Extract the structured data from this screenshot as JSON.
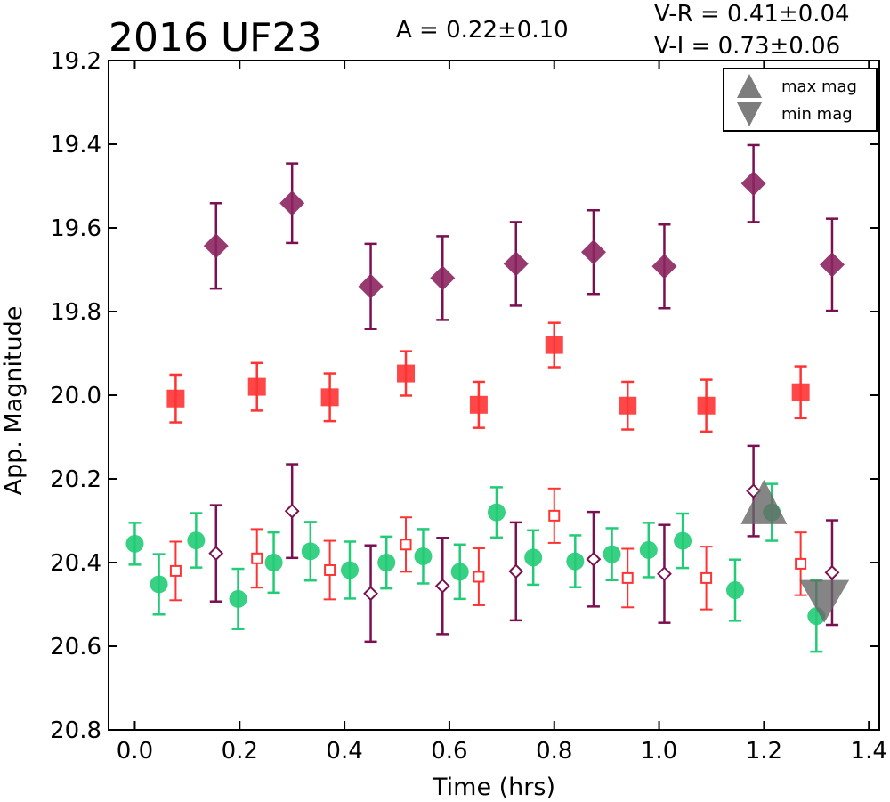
{
  "header": {
    "title": "2016 UF23",
    "amplitude": "A  = 0.22±0.10",
    "color_vr": "V-R = 0.41±0.04",
    "color_vi": "V-I  = 0.73±0.06"
  },
  "legend": {
    "max_label": "max mag",
    "min_label": "min mag"
  },
  "chart_data": {
    "type": "scatter",
    "xlabel": "Time (hrs)",
    "ylabel": "App. Magnitude",
    "xlim": [
      -0.05,
      1.42
    ],
    "ylim": [
      20.8,
      19.2
    ],
    "y_inverted": true,
    "grid": false,
    "legend_position": "top-right",
    "xticks": [
      "0.0",
      "0.2",
      "0.4",
      "0.6",
      "0.8",
      "1.0",
      "1.2",
      "1.4"
    ],
    "xtick_values": [
      0.0,
      0.2,
      0.4,
      0.6,
      0.8,
      1.0,
      1.2,
      1.4
    ],
    "yticks": [
      "19.2",
      "19.4",
      "19.6",
      "19.8",
      "20.0",
      "20.2",
      "20.4",
      "20.6",
      "20.8"
    ],
    "ytick_values": [
      19.2,
      19.4,
      19.6,
      19.8,
      20.0,
      20.2,
      20.4,
      20.6,
      20.8
    ],
    "colors": {
      "green": "#22cc77",
      "red": "#ff3333",
      "purple": "#7a1050",
      "purple_fill": "#8b2560",
      "marker_gray": "#666666"
    },
    "series": [
      {
        "marker": "filled-circle",
        "color": "#22cc77",
        "x": [
          0.0,
          0.046,
          0.117,
          0.197,
          0.265,
          0.335,
          0.41,
          0.48,
          0.55,
          0.62,
          0.69,
          0.76,
          0.84,
          0.91,
          0.98,
          1.045,
          1.145,
          1.215,
          1.3
        ],
        "y": [
          20.355,
          20.452,
          20.347,
          20.487,
          20.4,
          20.373,
          20.418,
          20.4,
          20.385,
          20.422,
          20.28,
          20.388,
          20.397,
          20.38,
          20.37,
          20.348,
          20.466,
          20.28,
          20.528
        ],
        "err": [
          0.05,
          0.072,
          0.065,
          0.072,
          0.072,
          0.07,
          0.068,
          0.062,
          0.065,
          0.065,
          0.06,
          0.065,
          0.062,
          0.062,
          0.065,
          0.065,
          0.073,
          0.068,
          0.085
        ]
      },
      {
        "marker": "filled-square",
        "color": "#ff3333",
        "x": [
          0.078,
          0.233,
          0.372,
          0.517,
          0.656,
          0.8,
          0.94,
          1.09,
          1.27
        ],
        "y": [
          20.008,
          19.98,
          20.005,
          19.948,
          20.023,
          19.88,
          20.025,
          20.025,
          19.993
        ],
        "err": [
          0.057,
          0.057,
          0.057,
          0.053,
          0.055,
          0.053,
          0.057,
          0.062,
          0.062
        ]
      },
      {
        "marker": "filled-diamond",
        "color": "#8b2560",
        "x": [
          0.155,
          0.3,
          0.45,
          0.587,
          0.727,
          0.875,
          1.01,
          1.18,
          1.33
        ],
        "y": [
          19.643,
          19.541,
          19.74,
          19.72,
          19.686,
          19.658,
          19.692,
          19.494,
          19.688
        ],
        "err": [
          0.102,
          0.095,
          0.102,
          0.1,
          0.1,
          0.1,
          0.1,
          0.092,
          0.11
        ]
      },
      {
        "marker": "open-square",
        "color": "#ff3333",
        "x": [
          0.078,
          0.233,
          0.372,
          0.517,
          0.656,
          0.8,
          0.94,
          1.09,
          1.27
        ],
        "y": [
          20.42,
          20.39,
          20.418,
          20.357,
          20.434,
          20.288,
          20.437,
          20.437,
          20.403
        ],
        "err": [
          0.07,
          0.07,
          0.07,
          0.065,
          0.068,
          0.065,
          0.07,
          0.075,
          0.075
        ]
      },
      {
        "marker": "open-diamond",
        "color": "#7a1050",
        "x": [
          0.155,
          0.3,
          0.45,
          0.587,
          0.727,
          0.875,
          1.01,
          1.18,
          1.33
        ],
        "y": [
          20.378,
          20.277,
          20.474,
          20.456,
          20.421,
          20.392,
          20.427,
          20.229,
          20.424
        ],
        "err": [
          0.115,
          0.112,
          0.115,
          0.115,
          0.117,
          0.113,
          0.117,
          0.108,
          0.125
        ]
      }
    ],
    "extrema_markers": [
      {
        "type": "max",
        "x": 1.2,
        "y": 20.27,
        "color": "#666666"
      },
      {
        "type": "min",
        "x": 1.315,
        "y": 20.48,
        "color": "#666666"
      }
    ]
  }
}
